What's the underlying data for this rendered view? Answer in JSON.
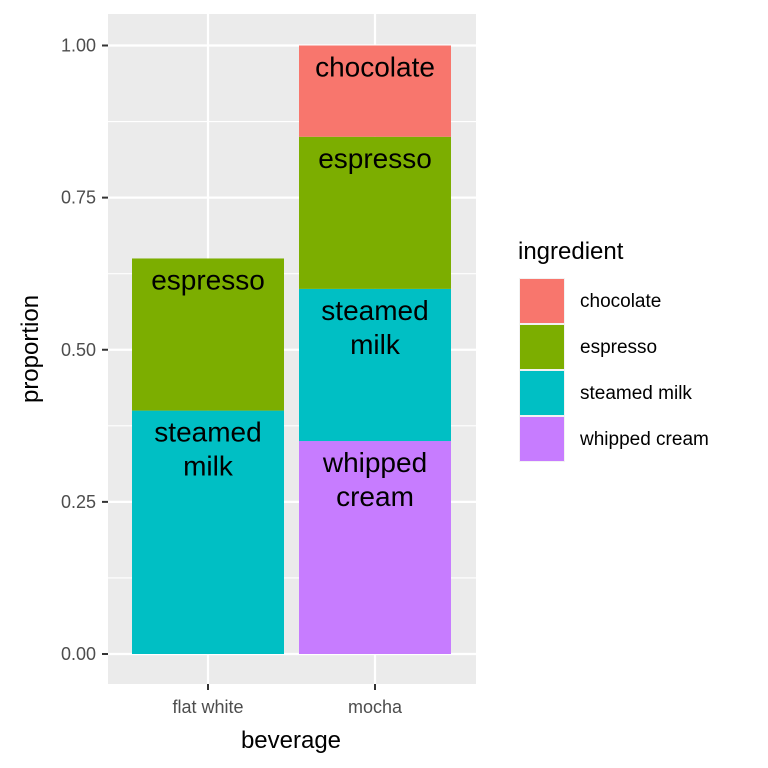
{
  "chart_data": {
    "type": "bar",
    "stacked": true,
    "xlabel": "beverage",
    "ylabel": "proportion",
    "ylim": [
      0,
      1.05
    ],
    "y_ticks": [
      "0.00",
      "0.25",
      "0.50",
      "0.75",
      "1.00"
    ],
    "y_tick_values": [
      0,
      0.25,
      0.5,
      0.75,
      1.0
    ],
    "categories": [
      "flat white",
      "mocha"
    ],
    "grid": true,
    "legend": {
      "title": "ingredient",
      "position": "right",
      "items": [
        {
          "label": "chocolate",
          "color": "#F8766D"
        },
        {
          "label": "espresso",
          "color": "#7CAE00"
        },
        {
          "label": "steamed milk",
          "color": "#00BFC4"
        },
        {
          "label": "whipped cream",
          "color": "#C77CFF"
        }
      ]
    },
    "bars": [
      {
        "category": "flat white",
        "segments": [
          {
            "ingredient": "steamed milk",
            "value": 0.4,
            "label_lines": [
              "steamed",
              "milk"
            ]
          },
          {
            "ingredient": "espresso",
            "value": 0.25,
            "label_lines": [
              "espresso"
            ]
          }
        ]
      },
      {
        "category": "mocha",
        "segments": [
          {
            "ingredient": "whipped cream",
            "value": 0.35,
            "label_lines": [
              "whipped",
              "cream"
            ]
          },
          {
            "ingredient": "steamed milk",
            "value": 0.25,
            "label_lines": [
              "steamed",
              "milk"
            ]
          },
          {
            "ingredient": "espresso",
            "value": 0.25,
            "label_lines": [
              "espresso"
            ]
          },
          {
            "ingredient": "chocolate",
            "value": 0.15,
            "label_lines": [
              "chocolate"
            ]
          }
        ]
      }
    ]
  }
}
